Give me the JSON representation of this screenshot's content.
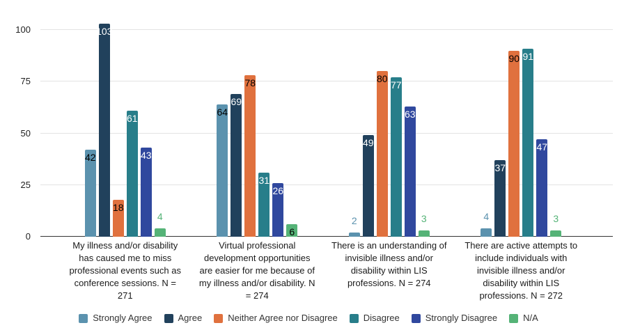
{
  "chart_data": {
    "type": "bar",
    "title": "",
    "xlabel": "",
    "ylabel": "",
    "grid": true,
    "legend_position": "bottom",
    "y_axis": {
      "ticks": [
        0,
        25,
        50,
        75,
        100
      ],
      "min": 0,
      "max": 100
    },
    "categories": [
      "My illness and/or disability\nhas caused me to miss\nprofessional events such as\nconference sessions. N =\n271",
      "Virtual professional\ndevelopment opportunities\nare easier for me because of\nmy illness and/or disability. N\n= 274",
      "There is an understanding of\ninvisible illness and/or\ndisability within LIS\nprofessions. N = 274",
      "There are active attempts to\ninclude individuals with\ninvisible illness and/or\ndisability within LIS\nprofessions. N = 272"
    ],
    "series": [
      {
        "name": "Strongly Agree",
        "color": "#5b92ae",
        "inside_label_color": "#000000",
        "outside_label_color": "#5b92ae",
        "values": [
          42,
          64,
          2,
          4
        ]
      },
      {
        "name": "Agree",
        "color": "#21415c",
        "inside_label_color": "#ffffff",
        "outside_label_color": "#33698c",
        "values": [
          103,
          69,
          49,
          37
        ]
      },
      {
        "name": "Neither Agree nor Disagree",
        "color": "#e0713e",
        "inside_label_color": "#000000",
        "outside_label_color": "#e0713e",
        "values": [
          18,
          78,
          80,
          90
        ]
      },
      {
        "name": "Disagree",
        "color": "#287e8a",
        "inside_label_color": "#ffffff",
        "outside_label_color": "#287e8a",
        "values": [
          61,
          31,
          77,
          91
        ]
      },
      {
        "name": "Strongly Disagree",
        "color": "#30489e",
        "inside_label_color": "#ffffff",
        "outside_label_color": "#30489e",
        "values": [
          43,
          26,
          63,
          47
        ]
      },
      {
        "name": "N/A",
        "color": "#55b377",
        "inside_label_color": "#000000",
        "outside_label_color": "#55b377",
        "values": [
          4,
          6,
          3,
          3
        ]
      }
    ]
  },
  "colors": {
    "background": "#ffffff",
    "gridline": "#e3e3e3",
    "baseline": "#333333",
    "axis_text": "#1f1f1f",
    "category_text": "#1a1a1a",
    "legend_text": "#333333"
  }
}
